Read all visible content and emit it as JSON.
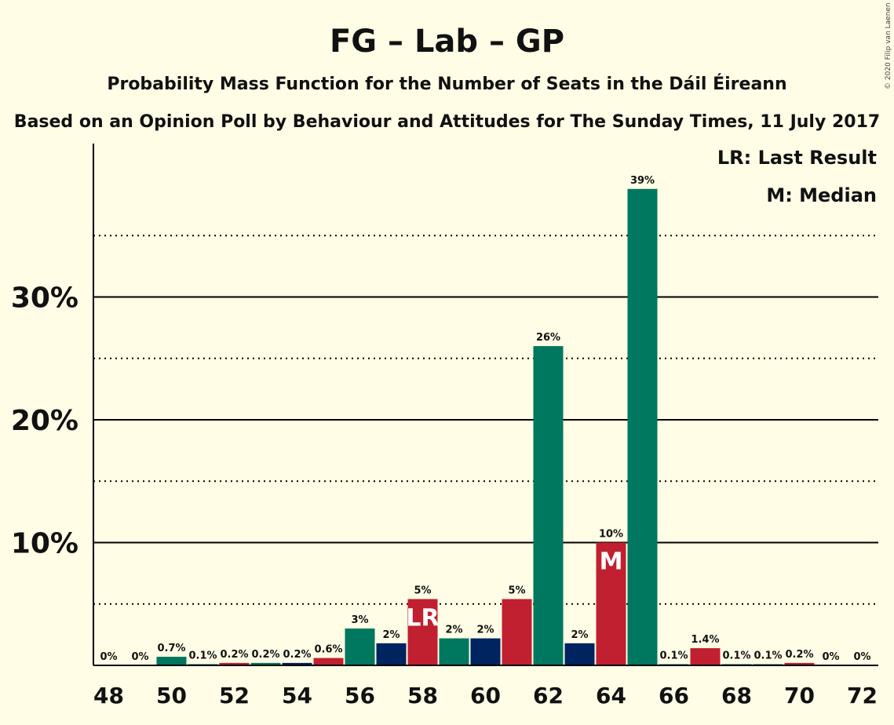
{
  "chart_data": {
    "type": "bar",
    "title": "FG – Lab – GP",
    "subtitle": "Probability Mass Function for the Number of Seats in the Dáil Éireann",
    "subtitle2": "Based on an Opinion Poll by Behaviour and Attitudes for The Sunday Times, 11 July 2017",
    "legend": [
      "LR: Last Result",
      "M: Median"
    ],
    "copyright": "© 2020 Filip van Laenen",
    "x": [
      48,
      49,
      50,
      51,
      52,
      53,
      54,
      55,
      56,
      57,
      58,
      59,
      60,
      61,
      62,
      63,
      64,
      65,
      66,
      67,
      68,
      69,
      70,
      71,
      72
    ],
    "values": [
      0,
      0,
      0.7,
      0.1,
      0.2,
      0.2,
      0.2,
      0.6,
      3,
      1.8,
      5.4,
      2.2,
      2.2,
      5.4,
      26,
      1.8,
      10,
      38.8,
      0.1,
      1.4,
      0.1,
      0.1,
      0.2,
      0,
      0
    ],
    "labels": [
      "0%",
      "0%",
      "0.7%",
      "0.1%",
      "0.2%",
      "0.2%",
      "0.2%",
      "0.6%",
      "3%",
      "2%",
      "5%",
      "2%",
      "2%",
      "5%",
      "26%",
      "2%",
      "10%",
      "39%",
      "0.1%",
      "1.4%",
      "0.1%",
      "0.1%",
      "0.2%",
      "0%",
      "0%"
    ],
    "colors": [
      "#00775F",
      "#00775F",
      "#00775F",
      "#00775F",
      "#C0202F",
      "#00775F",
      "#002460",
      "#C0202F",
      "#00775F",
      "#002460",
      "#C0202F",
      "#00775F",
      "#002460",
      "#C0202F",
      "#00775F",
      "#002460",
      "#C0202F",
      "#00775F",
      "#00775F",
      "#C0202F",
      "#00775F",
      "#00775F",
      "#C0202F",
      "#00775F",
      "#00775F"
    ],
    "markers": {
      "58": "LR",
      "64": "M"
    },
    "xticks": [
      "48",
      "50",
      "52",
      "54",
      "56",
      "58",
      "60",
      "62",
      "64",
      "66",
      "68",
      "70",
      "72"
    ],
    "yticks": [
      "10%",
      "20%",
      "30%"
    ],
    "ylim": [
      0,
      42.5
    ],
    "grid": true
  }
}
